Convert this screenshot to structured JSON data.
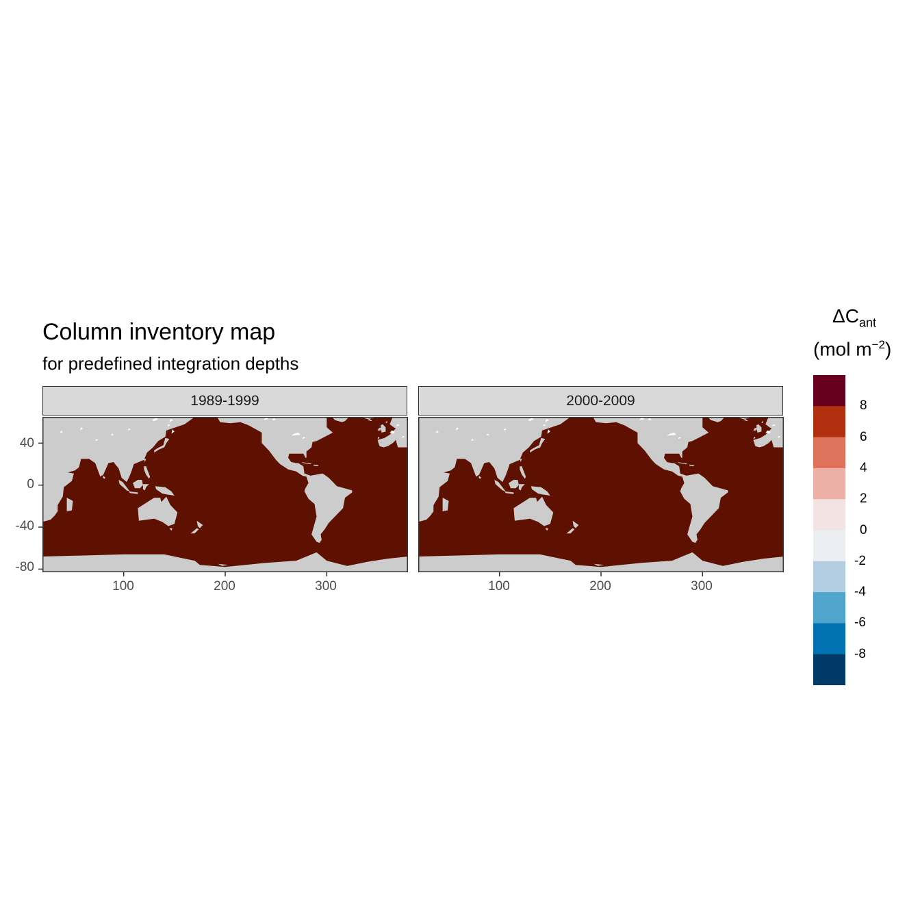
{
  "title": "Column inventory map",
  "subtitle": "for predefined integration depths",
  "panels": [
    {
      "label": "1989-1999"
    },
    {
      "label": "2000-2009"
    }
  ],
  "axes": {
    "x_ticks": [
      100,
      200,
      300
    ],
    "y_ticks": [
      40,
      0,
      -40,
      -80
    ],
    "x_range": [
      20,
      380
    ],
    "y_range": [
      -83,
      65
    ]
  },
  "legend": {
    "title_main": "ΔC",
    "title_sub": "ant",
    "unit_open": "(mol m",
    "unit_sup": "−2",
    "unit_close": ")",
    "labels": [
      "8",
      "6",
      "4",
      "2",
      "0",
      "-2",
      "-4",
      "-6",
      "-8"
    ],
    "colors": [
      "#67001f",
      "#b2300f",
      "#de725b",
      "#edb0a7",
      "#f3e3e3",
      "#ebeef2",
      "#b3cde3",
      "#4fa5cc",
      "#0072b2",
      "#003a66"
    ]
  },
  "colors": {
    "ocean": "#5e1100",
    "land": "#cccccc",
    "ice": "#ffffff"
  }
}
